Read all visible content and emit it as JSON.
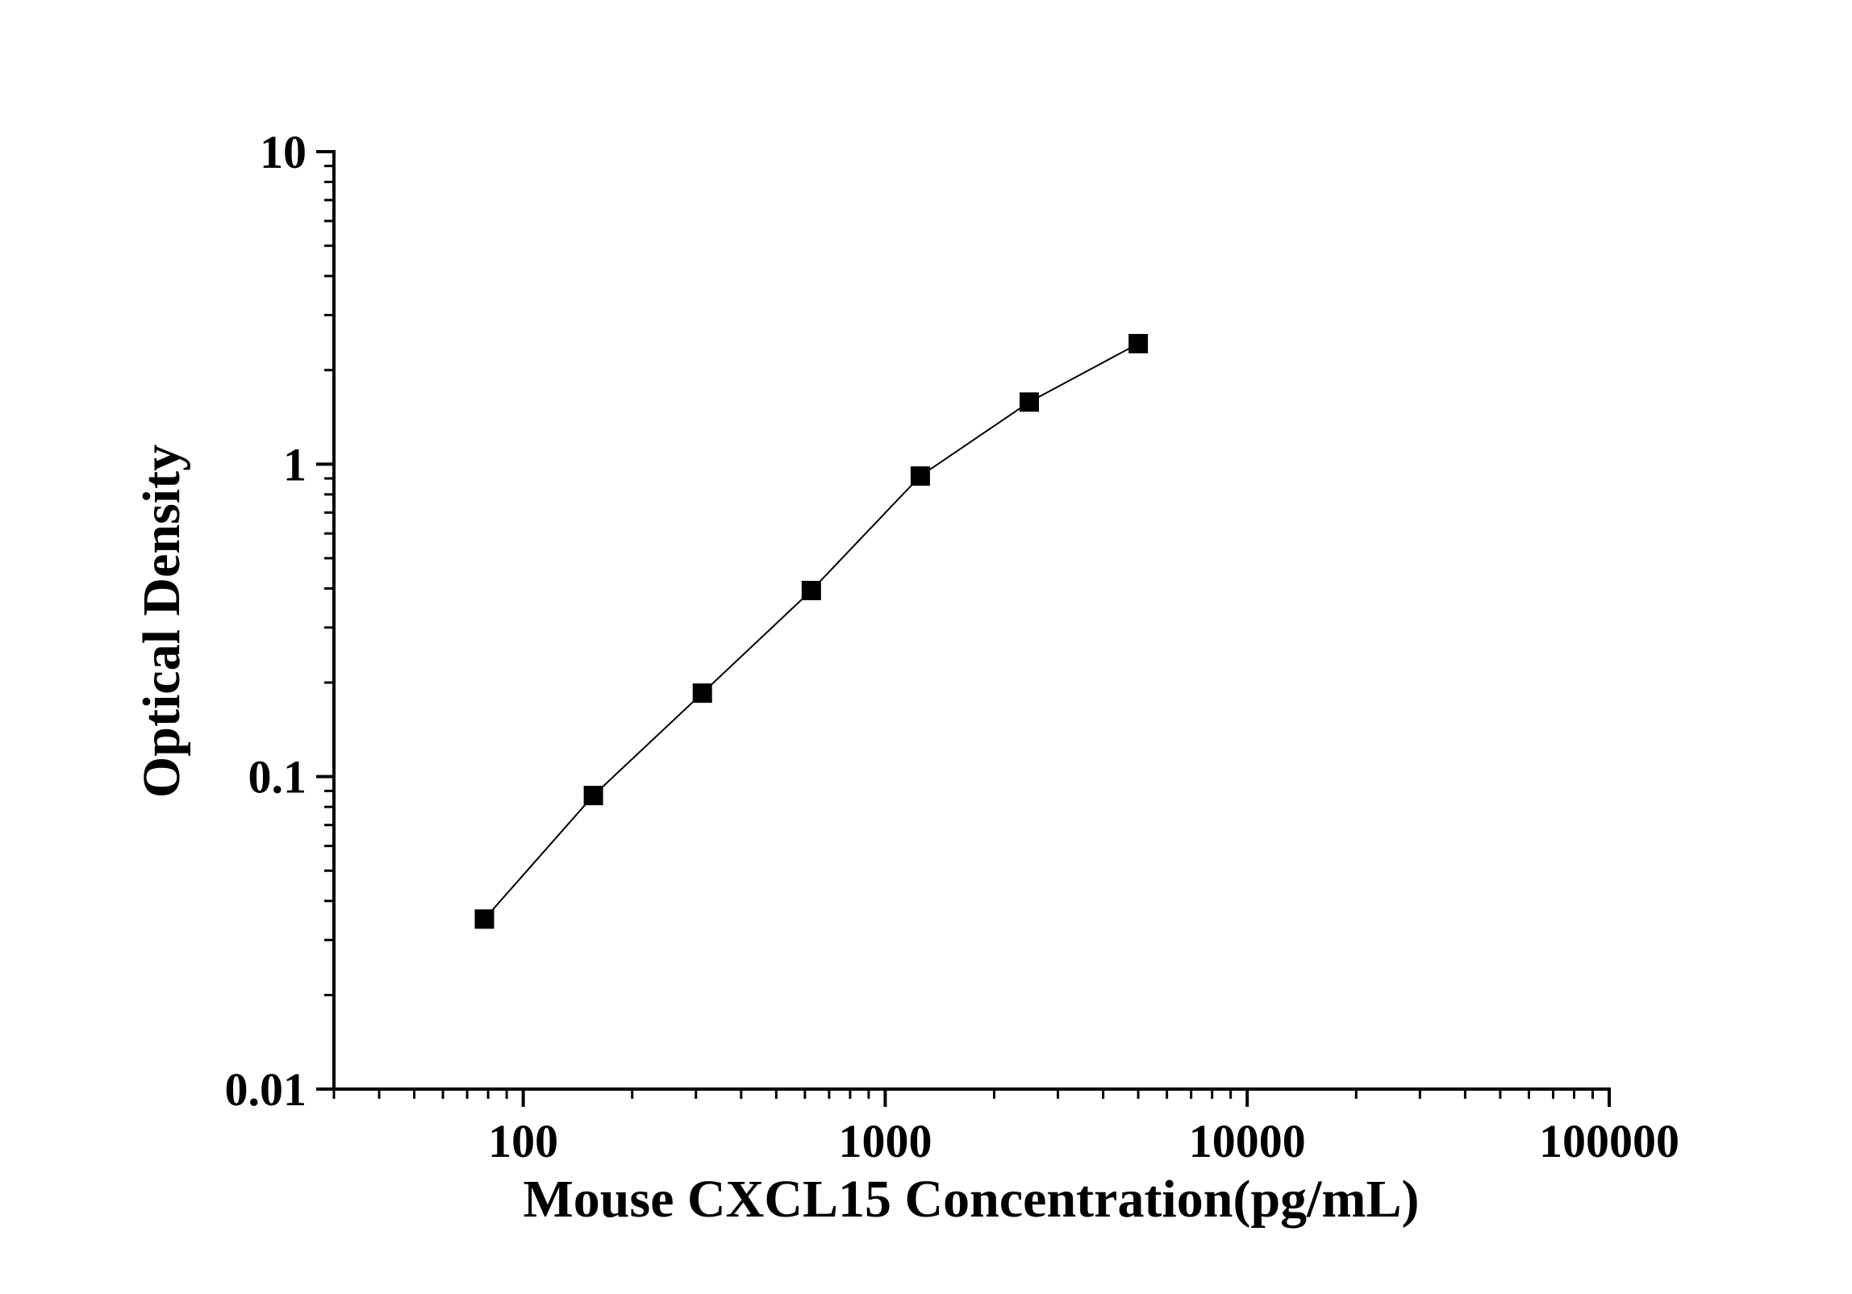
{
  "chart_data": {
    "type": "line",
    "x_label": "Mouse CXCL15 Concentration(pg/mL)",
    "y_label": "Optical Density",
    "x": [
      78.125,
      156.25,
      312.5,
      625,
      1250,
      2500,
      5000
    ],
    "series": [
      {
        "color": "#000000",
        "values": [
          0.035,
          0.087,
          0.185,
          0.394,
          0.916,
          1.58,
          2.43
        ]
      }
    ],
    "xlim": [
      30,
      100000
    ],
    "xticks": [
      100,
      1000,
      10000,
      100000
    ],
    "ylim": [
      0.01,
      10
    ],
    "yticks": [
      0.01,
      0.1,
      1,
      10
    ],
    "xscale": "log",
    "yscale": "log",
    "grid": false,
    "marker": "square"
  }
}
